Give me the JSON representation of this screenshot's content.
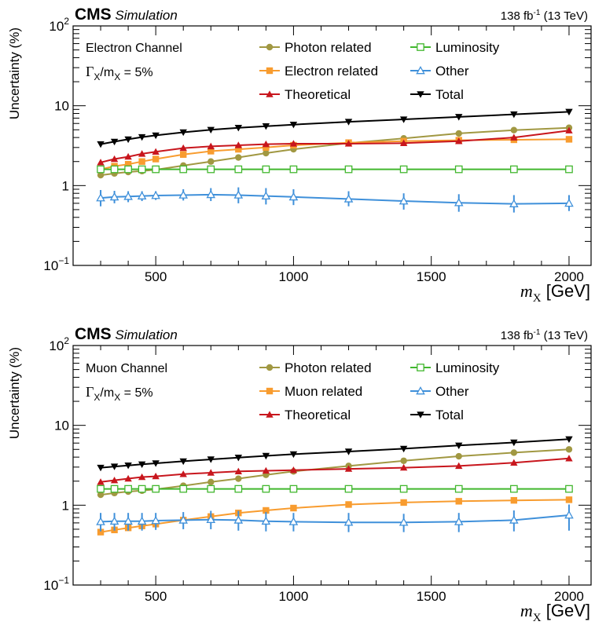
{
  "chart_data": [
    {
      "type": "line",
      "experiment": "CMS",
      "label_suffix": "Simulation",
      "lumi_label": "138 fb",
      "lumi_exp": "-1",
      "lumi_energy": "(13 TeV)",
      "channel": "Electron Channel",
      "width_label": "Γ",
      "width_sub1": "X",
      "width_mid": "/m",
      "width_sub2": "X",
      "width_value": " = 5%",
      "ylabel": "Uncertainty (%)",
      "xlabel_symbol": "m",
      "xlabel_sub": "X",
      "xlabel_unit": "[GeV]",
      "xlim": [
        200,
        2080
      ],
      "ylim": [
        0.1,
        100
      ],
      "log_y": true,
      "legend_position": "top",
      "x_ticks": [
        500,
        1000,
        1500,
        2000
      ],
      "y_ticks": [
        {
          "base": "10",
          "exp": "−1",
          "value": 0.1
        },
        {
          "base": "1",
          "exp": "",
          "value": 1
        },
        {
          "base": "10",
          "exp": "",
          "value": 10
        },
        {
          "base": "10",
          "exp": "2",
          "value": 100
        }
      ],
      "x": [
        300,
        350,
        400,
        450,
        500,
        600,
        700,
        800,
        900,
        1000,
        1200,
        1400,
        1600,
        1800,
        2000
      ],
      "series": [
        {
          "name": "Photon related",
          "color": "#a19842",
          "marker": "circle",
          "values": [
            1.35,
            1.42,
            1.48,
            1.52,
            1.58,
            1.78,
            2.0,
            2.25,
            2.55,
            2.85,
            3.4,
            3.9,
            4.5,
            4.95,
            5.3
          ]
        },
        {
          "name": "Electron related",
          "color": "#f89c2f",
          "marker": "square",
          "values": [
            1.6,
            1.75,
            1.85,
            2.0,
            2.15,
            2.45,
            2.7,
            2.85,
            3.0,
            3.2,
            3.45,
            3.6,
            3.7,
            3.75,
            3.8
          ]
        },
        {
          "name": "Theoretical",
          "color": "#c8161d",
          "marker": "triangle-up",
          "values": [
            1.95,
            2.15,
            2.3,
            2.5,
            2.65,
            2.95,
            3.1,
            3.2,
            3.3,
            3.35,
            3.35,
            3.4,
            3.6,
            4.0,
            4.9
          ]
        },
        {
          "name": "Luminosity",
          "color": "#41b72e",
          "marker": "open-square",
          "values": [
            1.6,
            1.6,
            1.6,
            1.6,
            1.6,
            1.6,
            1.6,
            1.6,
            1.6,
            1.6,
            1.6,
            1.6,
            1.6,
            1.6,
            1.6
          ]
        },
        {
          "name": "Other",
          "color": "#3f90da",
          "marker": "open-triangle",
          "values": [
            0.7,
            0.72,
            0.73,
            0.74,
            0.75,
            0.76,
            0.77,
            0.76,
            0.74,
            0.72,
            0.68,
            0.64,
            0.61,
            0.59,
            0.6
          ],
          "err_low": [
            0.55,
            0.6,
            0.62,
            0.64,
            0.66,
            0.65,
            0.64,
            0.6,
            0.58,
            0.57,
            0.55,
            0.5,
            0.47,
            0.46,
            0.48
          ],
          "err_high": [
            0.88,
            0.86,
            0.85,
            0.85,
            0.85,
            0.9,
            0.93,
            0.95,
            0.93,
            0.9,
            0.85,
            0.8,
            0.78,
            0.76,
            0.76
          ]
        },
        {
          "name": "Total",
          "color": "#000000",
          "marker": "triangle-down",
          "values": [
            3.3,
            3.55,
            3.8,
            4.05,
            4.25,
            4.65,
            5.0,
            5.3,
            5.55,
            5.8,
            6.3,
            6.75,
            7.25,
            7.8,
            8.4
          ]
        }
      ]
    },
    {
      "type": "line",
      "experiment": "CMS",
      "label_suffix": "Simulation",
      "lumi_label": "138 fb",
      "lumi_exp": "-1",
      "lumi_energy": "(13 TeV)",
      "channel": "Muon Channel",
      "width_label": "Γ",
      "width_sub1": "X",
      "width_mid": "/m",
      "width_sub2": "X",
      "width_value": " = 5%",
      "ylabel": "Uncertainty (%)",
      "xlabel_symbol": "m",
      "xlabel_sub": "X",
      "xlabel_unit": "[GeV]",
      "xlim": [
        200,
        2080
      ],
      "ylim": [
        0.1,
        100
      ],
      "log_y": true,
      "legend_position": "top",
      "x_ticks": [
        500,
        1000,
        1500,
        2000
      ],
      "y_ticks": [
        {
          "base": "10",
          "exp": "−1",
          "value": 0.1
        },
        {
          "base": "1",
          "exp": "",
          "value": 1
        },
        {
          "base": "10",
          "exp": "",
          "value": 10
        },
        {
          "base": "10",
          "exp": "2",
          "value": 100
        }
      ],
      "x": [
        300,
        350,
        400,
        450,
        500,
        600,
        700,
        800,
        900,
        1000,
        1200,
        1400,
        1600,
        1800,
        2000
      ],
      "series": [
        {
          "name": "Photon related",
          "color": "#a19842",
          "marker": "circle",
          "values": [
            1.35,
            1.42,
            1.48,
            1.52,
            1.58,
            1.75,
            1.95,
            2.15,
            2.4,
            2.65,
            3.1,
            3.6,
            4.1,
            4.55,
            5.0
          ]
        },
        {
          "name": "Muon related",
          "color": "#f89c2f",
          "marker": "square",
          "values": [
            0.46,
            0.49,
            0.52,
            0.55,
            0.58,
            0.65,
            0.72,
            0.8,
            0.86,
            0.92,
            1.02,
            1.08,
            1.12,
            1.15,
            1.17
          ]
        },
        {
          "name": "Theoretical",
          "color": "#c8161d",
          "marker": "triangle-up",
          "values": [
            1.95,
            2.05,
            2.15,
            2.25,
            2.3,
            2.45,
            2.55,
            2.65,
            2.7,
            2.75,
            2.85,
            2.95,
            3.1,
            3.4,
            3.85
          ]
        },
        {
          "name": "Luminosity",
          "color": "#41b72e",
          "marker": "open-square",
          "values": [
            1.6,
            1.6,
            1.6,
            1.6,
            1.6,
            1.6,
            1.6,
            1.6,
            1.6,
            1.6,
            1.6,
            1.6,
            1.6,
            1.6,
            1.6
          ]
        },
        {
          "name": "Other",
          "color": "#3f90da",
          "marker": "open-triangle",
          "values": [
            0.62,
            0.63,
            0.63,
            0.63,
            0.64,
            0.65,
            0.66,
            0.65,
            0.63,
            0.62,
            0.61,
            0.61,
            0.62,
            0.65,
            0.75
          ],
          "err_low": [
            0.47,
            0.48,
            0.48,
            0.48,
            0.49,
            0.5,
            0.5,
            0.48,
            0.47,
            0.47,
            0.46,
            0.46,
            0.46,
            0.47,
            0.48
          ],
          "err_high": [
            0.8,
            0.8,
            0.8,
            0.8,
            0.8,
            0.82,
            0.85,
            0.85,
            0.82,
            0.8,
            0.8,
            0.78,
            0.8,
            0.86,
            1.02
          ]
        },
        {
          "name": "Total",
          "color": "#000000",
          "marker": "triangle-down",
          "values": [
            2.95,
            3.05,
            3.15,
            3.25,
            3.35,
            3.55,
            3.75,
            3.95,
            4.15,
            4.35,
            4.7,
            5.1,
            5.6,
            6.1,
            6.7
          ]
        }
      ]
    }
  ]
}
